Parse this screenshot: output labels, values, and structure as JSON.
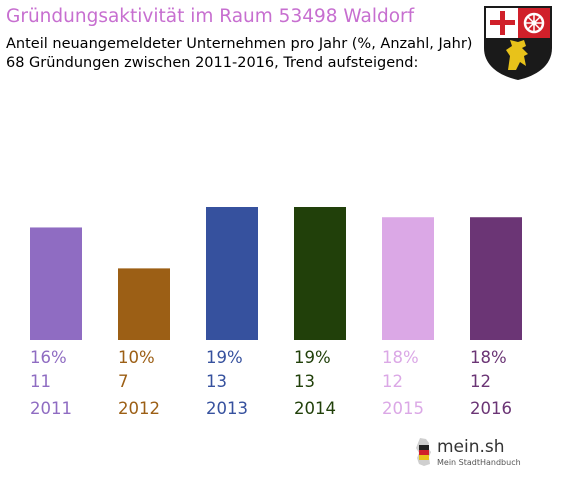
{
  "header": {
    "title": "Gründungsaktivität im Raum 53498 Waldorf",
    "subtitle_line1": "Anteil neuangemeldeter Unternehmen pro Jahr (%, Anzahl, Jahr)",
    "subtitle_line2": "68 Gründungen zwischen 2011-2016, Trend aufsteigend:"
  },
  "crest": {
    "icon": "rhineland-palatinate-coat-of-arms-icon"
  },
  "logo": {
    "name": "mein.sh",
    "tagline": "Mein StadtHandbuch",
    "icon": "germany-map-icon"
  },
  "chart_data": {
    "type": "bar",
    "categories": [
      "2011",
      "2012",
      "2013",
      "2014",
      "2015",
      "2016"
    ],
    "percent_labels": [
      "16%",
      "10%",
      "19%",
      "19%",
      "18%",
      "18%"
    ],
    "values": [
      11,
      7,
      13,
      13,
      12,
      12
    ],
    "colors": [
      "#8f6cc2",
      "#9c5f15",
      "#36519e",
      "#21400a",
      "#dba8e6",
      "#6b3575"
    ],
    "ylim": [
      0,
      13
    ],
    "grid": false,
    "legend": "none"
  }
}
